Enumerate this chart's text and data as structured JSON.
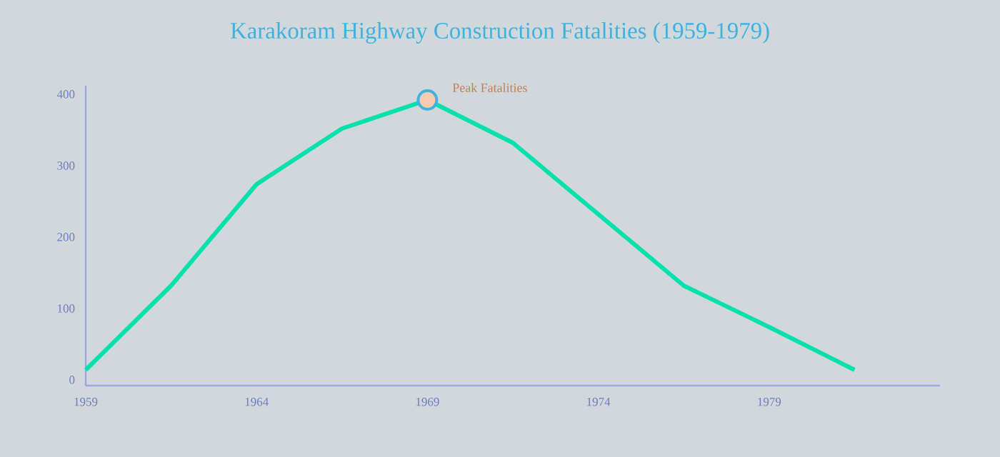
{
  "chart_data": {
    "type": "line",
    "title": "Karakoram Highway Construction Fatalities (1959-1979)",
    "x": [
      1959,
      1961.5,
      1964,
      1966.5,
      1969,
      1971.5,
      1974,
      1976.5,
      1979,
      1981.5
    ],
    "series": [
      {
        "color": "#06e0ac",
        "values": [
          14,
          132,
          274,
          352,
          392,
          332,
          232,
          132,
          74,
          14
        ]
      }
    ],
    "xlim": [
      1959,
      1984
    ],
    "ylim": [
      -8,
      412
    ],
    "xticks": [
      1959,
      1964,
      1969,
      1974,
      1979
    ],
    "yticks": [
      0,
      100,
      200,
      300,
      400
    ],
    "grid": false,
    "marker": "none",
    "line_style": "solid",
    "annotations": [
      {
        "text": "Peak Fatalities",
        "x": 1969,
        "y": 392
      }
    ]
  }
}
